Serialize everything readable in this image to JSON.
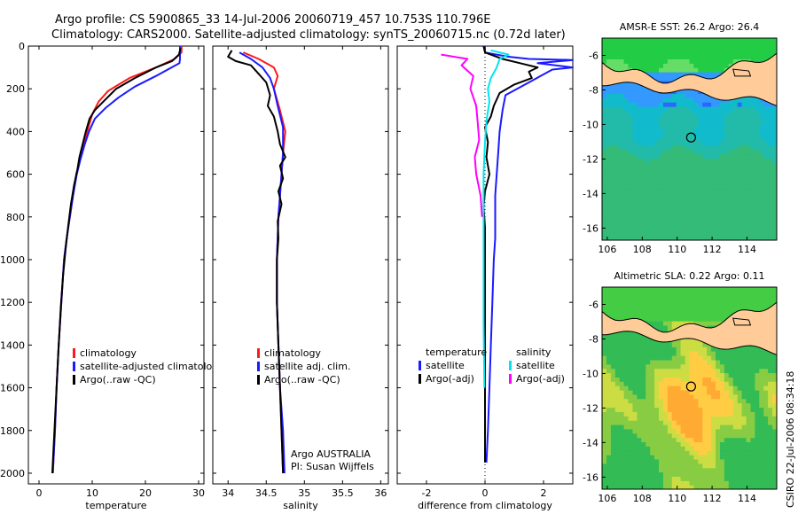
{
  "header": {
    "title_line1": "Argo profile: CS 5900865_33 14-Jul-2006 20060719_457 10.753S 110.796E",
    "title_line2": "Climatology: CARS2000. Satellite-adjusted climatology: synTS_20060715.nc (0.72d later)"
  },
  "credit": "CSIRO 22-Jul-2006 08:34:18",
  "colors": {
    "climatology": "#ff1a1a",
    "satellite": "#1a1aff",
    "argo": "#000000",
    "salinity_satellite": "#00e5ee",
    "salinity_argo": "#ff00ff",
    "land": "#ffcc99"
  },
  "chart_data": [
    {
      "type": "line",
      "title": "",
      "xlabel": "temperature",
      "ylabel": "",
      "xlim": [
        -2,
        31
      ],
      "ylim": [
        2050,
        0
      ],
      "x_ticks": [
        0,
        10,
        20,
        30
      ],
      "y_ticks": [
        0,
        200,
        400,
        600,
        800,
        1000,
        1200,
        1400,
        1600,
        1800,
        2000
      ],
      "legend": [
        "climatology",
        "satellite-adjusted climatology",
        "Argo(..raw -QC)"
      ],
      "series": [
        {
          "name": "climatology",
          "color": "#ff1a1a",
          "points": [
            [
              26.8,
              0
            ],
            [
              26.8,
              30
            ],
            [
              25.5,
              60
            ],
            [
              22,
              100
            ],
            [
              17,
              150
            ],
            [
              13,
              210
            ],
            [
              11.2,
              260
            ],
            [
              10,
              320
            ],
            [
              9.3,
              380
            ],
            [
              8.5,
              450
            ],
            [
              7.8,
              520
            ],
            [
              7,
              600
            ],
            [
              6.4,
              700
            ],
            [
              5.8,
              800
            ],
            [
              5.2,
              900
            ],
            [
              4.7,
              1000
            ],
            [
              4.2,
              1200
            ],
            [
              3.7,
              1400
            ],
            [
              3.3,
              1600
            ],
            [
              3,
              1800
            ],
            [
              2.6,
              2000
            ]
          ]
        },
        {
          "name": "satellite-adjusted climatology",
          "color": "#1a1aff",
          "points": [
            [
              26.5,
              0
            ],
            [
              26.5,
              60
            ],
            [
              26.4,
              80
            ],
            [
              22,
              140
            ],
            [
              18,
              190
            ],
            [
              15,
              240
            ],
            [
              12.5,
              290
            ],
            [
              10.5,
              340
            ],
            [
              9.4,
              400
            ],
            [
              8.6,
              460
            ],
            [
              7.8,
              530
            ],
            [
              7.1,
              600
            ],
            [
              6.4,
              700
            ],
            [
              5.8,
              800
            ],
            [
              5.2,
              900
            ],
            [
              4.7,
              1000
            ],
            [
              4.2,
              1200
            ],
            [
              3.7,
              1400
            ],
            [
              3.3,
              1600
            ],
            [
              3,
              1800
            ],
            [
              2.6,
              2000
            ]
          ]
        },
        {
          "name": "Argo(..raw -QC)",
          "color": "#000000",
          "points": [
            [
              26.6,
              10
            ],
            [
              26.3,
              40
            ],
            [
              25,
              70
            ],
            [
              22,
              100
            ],
            [
              18,
              150
            ],
            [
              14.5,
              200
            ],
            [
              12.5,
              250
            ],
            [
              10.5,
              300
            ],
            [
              9.5,
              340
            ],
            [
              8.8,
              400
            ],
            [
              8.2,
              460
            ],
            [
              7.6,
              520
            ],
            [
              7.2,
              580
            ],
            [
              6.6,
              650
            ],
            [
              6,
              740
            ],
            [
              5.5,
              840
            ],
            [
              5,
              950
            ],
            [
              4.5,
              1080
            ],
            [
              4.1,
              1220
            ],
            [
              3.7,
              1400
            ],
            [
              3.3,
              1600
            ],
            [
              2.9,
              1800
            ],
            [
              2.5,
              2000
            ]
          ]
        }
      ]
    },
    {
      "type": "line",
      "title": "",
      "xlabel": "salinity",
      "ylabel": "",
      "xlim": [
        33.8,
        36.1
      ],
      "ylim": [
        2050,
        0
      ],
      "x_ticks": [
        34,
        34.5,
        35,
        35.5,
        36
      ],
      "legend": [
        "climatology",
        "satellite adj. clim.",
        "Argo(..raw -QC)"
      ],
      "annotations": [
        "Argo AUSTRALIA",
        "PI: Susan Wijffels"
      ],
      "series": [
        {
          "name": "climatology",
          "color": "#ff1a1a",
          "points": [
            [
              34.2,
              30
            ],
            [
              34.4,
              60
            ],
            [
              34.6,
              100
            ],
            [
              34.65,
              140
            ],
            [
              34.6,
              200
            ],
            [
              34.68,
              300
            ],
            [
              34.75,
              400
            ],
            [
              34.72,
              500
            ],
            [
              34.7,
              600
            ],
            [
              34.68,
              700
            ],
            [
              34.66,
              800
            ],
            [
              34.64,
              1000
            ],
            [
              34.64,
              1200
            ],
            [
              34.66,
              1400
            ],
            [
              34.68,
              1600
            ],
            [
              34.7,
              1800
            ],
            [
              34.72,
              2000
            ]
          ]
        },
        {
          "name": "satellite adj. clim.",
          "color": "#1a1aff",
          "points": [
            [
              34.15,
              30
            ],
            [
              34.3,
              60
            ],
            [
              34.45,
              100
            ],
            [
              34.55,
              150
            ],
            [
              34.6,
              200
            ],
            [
              34.65,
              280
            ],
            [
              34.72,
              380
            ],
            [
              34.72,
              500
            ],
            [
              34.7,
              600
            ],
            [
              34.68,
              700
            ],
            [
              34.66,
              800
            ],
            [
              34.64,
              1000
            ],
            [
              34.64,
              1200
            ],
            [
              34.66,
              1400
            ],
            [
              34.68,
              1600
            ],
            [
              34.72,
              1800
            ],
            [
              34.74,
              2000
            ]
          ]
        },
        {
          "name": "Argo(..raw -QC)",
          "color": "#000000",
          "points": [
            [
              34.05,
              20
            ],
            [
              34.0,
              50
            ],
            [
              34.1,
              70
            ],
            [
              34.3,
              90
            ],
            [
              34.4,
              130
            ],
            [
              34.5,
              170
            ],
            [
              34.55,
              230
            ],
            [
              34.52,
              280
            ],
            [
              34.6,
              330
            ],
            [
              34.65,
              400
            ],
            [
              34.68,
              460
            ],
            [
              34.75,
              520
            ],
            [
              34.68,
              560
            ],
            [
              34.72,
              620
            ],
            [
              34.66,
              680
            ],
            [
              34.7,
              740
            ],
            [
              34.65,
              820
            ],
            [
              34.66,
              900
            ],
            [
              34.64,
              1000
            ],
            [
              34.64,
              1200
            ],
            [
              34.66,
              1400
            ],
            [
              34.68,
              1600
            ],
            [
              34.7,
              1800
            ],
            [
              34.72,
              2000
            ]
          ]
        }
      ]
    },
    {
      "type": "line",
      "title": "",
      "xlabel": "difference from climatology",
      "ylabel": "",
      "xlim": [
        -3,
        3
      ],
      "ylim": [
        2050,
        0
      ],
      "x_ticks": [
        -2,
        0,
        2
      ],
      "legend_groups": [
        {
          "heading": "temperature",
          "items": [
            "satellite",
            "Argo(-adj)"
          ]
        },
        {
          "heading": "salinity",
          "items": [
            "satellite",
            "Argo(-adj)"
          ]
        }
      ],
      "series": [
        {
          "name": "temperature satellite",
          "color": "#1a1aff",
          "points": [
            [
              0,
              0
            ],
            [
              0,
              30
            ],
            [
              0.8,
              50
            ],
            [
              1.5,
              60
            ],
            [
              3,
              65
            ],
            [
              1.8,
              80
            ],
            [
              3,
              100
            ],
            [
              2.3,
              110
            ],
            [
              1.5,
              170
            ],
            [
              0.7,
              230
            ],
            [
              0.6,
              300
            ],
            [
              0.5,
              400
            ],
            [
              0.45,
              500
            ],
            [
              0.4,
              600
            ],
            [
              0.35,
              700
            ],
            [
              0.35,
              800
            ],
            [
              0.35,
              900
            ],
            [
              0.3,
              1000
            ],
            [
              0.25,
              1200
            ],
            [
              0.2,
              1400
            ],
            [
              0.15,
              1600
            ],
            [
              0.1,
              1800
            ],
            [
              0.05,
              1950
            ]
          ]
        },
        {
          "name": "temperature Argo(-adj)",
          "color": "#000000",
          "points": [
            [
              -0.05,
              0
            ],
            [
              0,
              30
            ],
            [
              0.6,
              60
            ],
            [
              1.2,
              80
            ],
            [
              1.8,
              100
            ],
            [
              1.5,
              120
            ],
            [
              1.6,
              150
            ],
            [
              1,
              180
            ],
            [
              0.5,
              220
            ],
            [
              0.3,
              280
            ],
            [
              0.2,
              330
            ],
            [
              0,
              380
            ],
            [
              0.1,
              450
            ],
            [
              0.05,
              520
            ],
            [
              0.15,
              600
            ],
            [
              0,
              680
            ],
            [
              -0.05,
              750
            ],
            [
              0,
              850
            ],
            [
              0,
              1000
            ],
            [
              0,
              1200
            ],
            [
              0,
              1400
            ],
            [
              0,
              1600
            ],
            [
              0,
              1800
            ],
            [
              0,
              1950
            ]
          ]
        },
        {
          "name": "salinity satellite",
          "color": "#00e5ee",
          "points": [
            [
              0.2,
              20
            ],
            [
              0.8,
              40
            ],
            [
              0.5,
              60
            ],
            [
              0.4,
              100
            ],
            [
              0.2,
              150
            ],
            [
              0.1,
              200
            ],
            [
              0.15,
              260
            ],
            [
              0.05,
              350
            ],
            [
              0,
              450
            ],
            [
              -0.05,
              600
            ],
            [
              -0.05,
              800
            ],
            [
              -0.05,
              1000
            ],
            [
              -0.05,
              1300
            ],
            [
              -0.02,
              1600
            ]
          ]
        },
        {
          "name": "salinity Argo(-adj)",
          "color": "#ff00ff",
          "points": [
            [
              -1.5,
              40
            ],
            [
              -0.6,
              60
            ],
            [
              -0.8,
              90
            ],
            [
              -0.4,
              140
            ],
            [
              -0.5,
              200
            ],
            [
              -0.3,
              280
            ],
            [
              -0.25,
              360
            ],
            [
              -0.2,
              440
            ],
            [
              -0.35,
              520
            ],
            [
              -0.3,
              600
            ],
            [
              -0.15,
              700
            ],
            [
              -0.1,
              800
            ]
          ]
        }
      ]
    },
    {
      "type": "heatmap",
      "title": "AMSR-E SST: 26.2 Argo: 26.4",
      "xlim": [
        105.7,
        115.7
      ],
      "ylim": [
        -16.7,
        -5
      ],
      "x_ticks": [
        106,
        108,
        110,
        112,
        114
      ],
      "y_ticks": [
        -6,
        -8,
        -10,
        -12,
        -14,
        -16
      ],
      "argo_position": {
        "lon": 110.796,
        "lat": -10.753
      }
    },
    {
      "type": "heatmap",
      "title": "Altimetric SLA: 0.22 Argo: 0.11",
      "xlim": [
        105.7,
        115.7
      ],
      "ylim": [
        -16.7,
        -5
      ],
      "x_ticks": [
        106,
        108,
        110,
        112,
        114
      ],
      "y_ticks": [
        -6,
        -8,
        -10,
        -12,
        -14,
        -16
      ],
      "argo_position": {
        "lon": 110.796,
        "lat": -10.753
      }
    }
  ]
}
